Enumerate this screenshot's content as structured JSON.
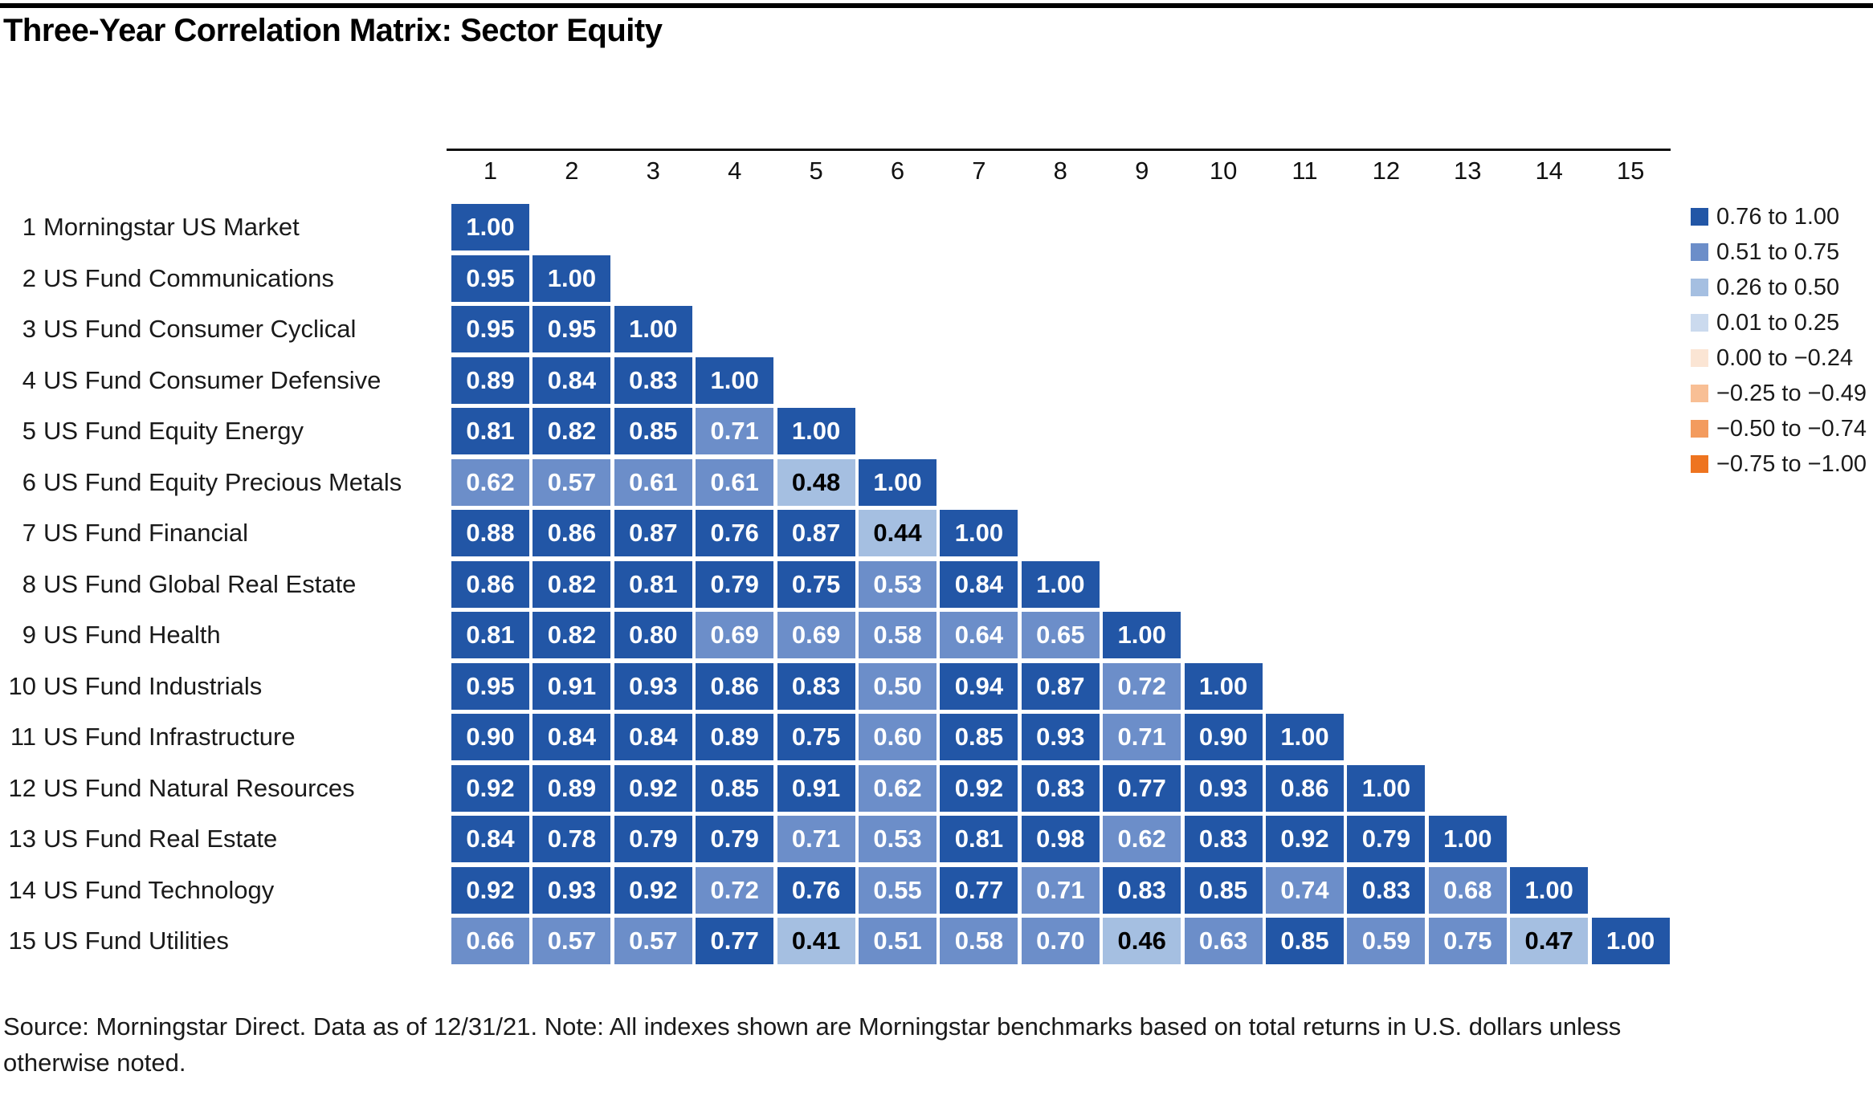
{
  "chart_data": {
    "type": "heatmap",
    "title": "Three-Year Correlation Matrix: Sector Equity",
    "col_headers": [
      "1",
      "2",
      "3",
      "4",
      "5",
      "6",
      "7",
      "8",
      "9",
      "10",
      "11",
      "12",
      "13",
      "14",
      "15"
    ],
    "legend_position": "top-right",
    "legend": [
      {
        "label": "0.76 to 1.00",
        "color": "#2256A6",
        "text": "#FFFFFF"
      },
      {
        "label": "0.51 to 0.75",
        "color": "#6C8EC9",
        "text": "#FFFFFF"
      },
      {
        "label": "0.26 to 0.50",
        "color": "#A5BFE1",
        "text": "#000000"
      },
      {
        "label": "0.01 to 0.25",
        "color": "#CBDAEE",
        "text": "#000000"
      },
      {
        "label": "0.00 to −0.24",
        "color": "#FBE5D4",
        "text": "#000000"
      },
      {
        "label": "−0.25 to −0.49",
        "color": "#F8BF95",
        "text": "#000000"
      },
      {
        "label": "−0.50 to −0.74",
        "color": "#F39B5E",
        "text": "#000000"
      },
      {
        "label": "−0.75 to −1.00",
        "color": "#EE7420",
        "text": "#FFFFFF"
      }
    ],
    "rows": [
      {
        "num": "1",
        "label": "Morningstar US Market",
        "values": [
          1.0
        ],
        "bins": [
          0
        ]
      },
      {
        "num": "2",
        "label": "US Fund Communications",
        "values": [
          0.95,
          1.0
        ],
        "bins": [
          0,
          0
        ]
      },
      {
        "num": "3",
        "label": "US Fund Consumer Cyclical",
        "values": [
          0.95,
          0.95,
          1.0
        ],
        "bins": [
          0,
          0,
          0
        ]
      },
      {
        "num": "4",
        "label": "US Fund Consumer Defensive",
        "values": [
          0.89,
          0.84,
          0.83,
          1.0
        ],
        "bins": [
          0,
          0,
          0,
          0
        ]
      },
      {
        "num": "5",
        "label": "US Fund Equity Energy",
        "values": [
          0.81,
          0.82,
          0.85,
          0.71,
          1.0
        ],
        "bins": [
          0,
          0,
          0,
          1,
          0
        ]
      },
      {
        "num": "6",
        "label": "US Fund Equity Precious Metals",
        "values": [
          0.62,
          0.57,
          0.61,
          0.61,
          0.48,
          1.0
        ],
        "bins": [
          1,
          1,
          1,
          1,
          2,
          0
        ]
      },
      {
        "num": "7",
        "label": "US Fund Financial",
        "values": [
          0.88,
          0.86,
          0.87,
          0.76,
          0.87,
          0.44,
          1.0
        ],
        "bins": [
          0,
          0,
          0,
          0,
          0,
          2,
          0
        ]
      },
      {
        "num": "8",
        "label": "US Fund Global Real Estate",
        "values": [
          0.86,
          0.82,
          0.81,
          0.79,
          0.75,
          0.53,
          0.84,
          1.0
        ],
        "bins": [
          0,
          0,
          0,
          0,
          0,
          1,
          0,
          0
        ]
      },
      {
        "num": "9",
        "label": "US Fund Health",
        "values": [
          0.81,
          0.82,
          0.8,
          0.69,
          0.69,
          0.58,
          0.64,
          0.65,
          1.0
        ],
        "bins": [
          0,
          0,
          0,
          1,
          1,
          1,
          1,
          1,
          0
        ]
      },
      {
        "num": "10",
        "label": "US Fund Industrials",
        "values": [
          0.95,
          0.91,
          0.93,
          0.86,
          0.83,
          0.5,
          0.94,
          0.87,
          0.72,
          1.0
        ],
        "bins": [
          0,
          0,
          0,
          0,
          0,
          1,
          0,
          0,
          1,
          0
        ]
      },
      {
        "num": "11",
        "label": "US Fund Infrastructure",
        "values": [
          0.9,
          0.84,
          0.84,
          0.89,
          0.75,
          0.6,
          0.85,
          0.93,
          0.71,
          0.9,
          1.0
        ],
        "bins": [
          0,
          0,
          0,
          0,
          0,
          1,
          0,
          0,
          1,
          0,
          0
        ]
      },
      {
        "num": "12",
        "label": "US Fund Natural Resources",
        "values": [
          0.92,
          0.89,
          0.92,
          0.85,
          0.91,
          0.62,
          0.92,
          0.83,
          0.77,
          0.93,
          0.86,
          1.0
        ],
        "bins": [
          0,
          0,
          0,
          0,
          0,
          1,
          0,
          0,
          0,
          0,
          0,
          0
        ]
      },
      {
        "num": "13",
        "label": "US Fund Real Estate",
        "values": [
          0.84,
          0.78,
          0.79,
          0.79,
          0.71,
          0.53,
          0.81,
          0.98,
          0.62,
          0.83,
          0.92,
          0.79,
          1.0
        ],
        "bins": [
          0,
          0,
          0,
          0,
          1,
          1,
          0,
          0,
          1,
          0,
          0,
          0,
          0
        ]
      },
      {
        "num": "14",
        "label": "US Fund Technology",
        "values": [
          0.92,
          0.93,
          0.92,
          0.72,
          0.76,
          0.55,
          0.77,
          0.71,
          0.83,
          0.85,
          0.74,
          0.83,
          0.68,
          1.0
        ],
        "bins": [
          0,
          0,
          0,
          1,
          0,
          1,
          0,
          1,
          0,
          0,
          1,
          0,
          1,
          0
        ]
      },
      {
        "num": "15",
        "label": "US Fund Utilities",
        "values": [
          0.66,
          0.57,
          0.57,
          0.77,
          0.41,
          0.51,
          0.58,
          0.7,
          0.46,
          0.63,
          0.85,
          0.59,
          0.75,
          0.47,
          1.0
        ],
        "bins": [
          1,
          1,
          1,
          0,
          2,
          1,
          1,
          1,
          2,
          1,
          0,
          1,
          1,
          2,
          0
        ]
      }
    ],
    "source_lines": [
      "Source: Morningstar Direct. Data as of 12/31/21. Note: All indexes shown are Morningstar benchmarks based on total returns in U.S. dollars unless",
      "otherwise noted."
    ]
  }
}
